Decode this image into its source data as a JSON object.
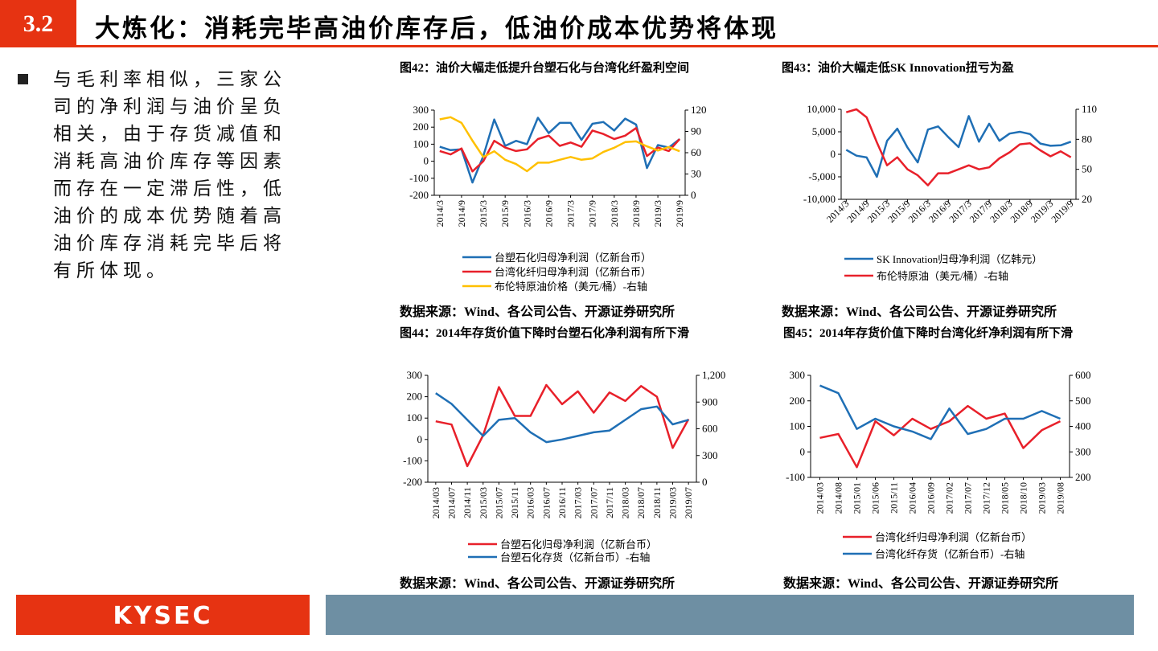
{
  "header": {
    "number": "3.2",
    "title": "大炼化：消耗完毕高油价库存后，低油价成本优势将体现"
  },
  "body": {
    "text": "与毛利率相似，三家公司的净利润与油价呈负相关，由于存货减值和消耗高油价库存等因素而存在一定滞后性，低油价的成本优势随着高油价库存消耗完毕后将有所体现。"
  },
  "footer": {
    "logo": "KYSEC"
  },
  "chart_data": [
    {
      "type": "line",
      "title": "图42：油价大幅走低提升台塑石化与台湾化纤盈利空间",
      "source": "数据来源：Wind、各公司公告、开源证券研究所",
      "categories": [
        "2014/3",
        null,
        "2014/9",
        null,
        "2015/3",
        null,
        "2015/9",
        null,
        "2016/3",
        null,
        "2016/9",
        null,
        "2017/3",
        null,
        "2017/9",
        null,
        "2018/3",
        null,
        "2018/9",
        null,
        "2019/3",
        null,
        "2019/9"
      ],
      "series": [
        {
          "name": "台塑石化归母净利润（亿新台币）",
          "color": "#1f6fb5",
          "values": [
            85,
            65,
            70,
            -125,
            30,
            245,
            90,
            120,
            100,
            255,
            165,
            225,
            225,
            125,
            220,
            230,
            180,
            250,
            215,
            -40,
            95,
            80,
            130
          ]
        },
        {
          "name": "台湾化纤归母净利润（亿新台币）",
          "color": "#e8202a",
          "values": [
            60,
            40,
            75,
            -60,
            0,
            120,
            80,
            60,
            70,
            130,
            150,
            90,
            110,
            85,
            180,
            160,
            130,
            150,
            195,
            30,
            80,
            60,
            130
          ]
        },
        {
          "name": "布伦特原油价格（美元/桶）-右轴",
          "color": "#ffc000",
          "axis": "y2",
          "values": [
            107,
            110,
            102,
            77,
            54,
            62,
            50,
            44,
            34,
            46,
            46,
            50,
            54,
            50,
            52,
            61,
            67,
            75,
            76,
            69,
            63,
            68,
            62
          ]
        }
      ],
      "ylim": [
        -200,
        300
      ],
      "yticks": [
        -200,
        -100,
        0,
        100,
        200,
        300
      ],
      "y2lim": [
        0,
        120
      ],
      "y2ticks": [
        0,
        30,
        60,
        90,
        120
      ],
      "legend": "bottom"
    },
    {
      "type": "line",
      "title": "图43：油价大幅走低SK Innovation扭亏为盈",
      "source": "数据来源：Wind、各公司公告、开源证券研究所",
      "categories": [
        "2014/3",
        null,
        "2014/9",
        null,
        "2015/3",
        null,
        "2015/9",
        null,
        "2016/3",
        null,
        "2016/9",
        null,
        "2017/3",
        null,
        "2017/9",
        null,
        "2018/3",
        null,
        "2018/9",
        null,
        "2019/3",
        null,
        "2019/9"
      ],
      "series": [
        {
          "name": "SK Innovation归母净利润（亿韩元）",
          "color": "#1f6fb5",
          "values": [
            1000,
            -300,
            -700,
            -5000,
            3000,
            5700,
            1500,
            -1800,
            5500,
            6200,
            3800,
            1600,
            8500,
            2800,
            6800,
            3000,
            4600,
            5000,
            4500,
            2400,
            1900,
            2000,
            2800
          ]
        },
        {
          "name": "布伦特原油（美元/桶）-右轴",
          "color": "#e8202a",
          "axis": "y2",
          "values": [
            107,
            110,
            102,
            77,
            54,
            62,
            50,
            44,
            34,
            46,
            46,
            50,
            54,
            50,
            52,
            61,
            67,
            75,
            76,
            69,
            63,
            68,
            62
          ]
        }
      ],
      "ylim": [
        -10000,
        10000
      ],
      "yticks": [
        {
          "value": -10000,
          "label": "-10,000"
        },
        {
          "value": -5000,
          "label": "-5,000"
        },
        0,
        {
          "value": 5000,
          "label": "5,000"
        },
        {
          "value": 10000,
          "label": "10,000"
        }
      ],
      "y2lim": [
        20,
        110
      ],
      "y2ticks": [
        20,
        50,
        80,
        110
      ],
      "legend": "bottom"
    },
    {
      "type": "line",
      "title": "图44：2014年存货价值下降时台塑石化净利润有所下滑",
      "source": "数据来源：Wind、各公司公告、开源证券研究所",
      "categories": [
        "2014/03",
        "2014/07",
        "2014/11",
        "2015/03",
        "2015/07",
        "2015/11",
        "2016/03",
        "2016/07",
        "2016/11",
        "2017/03",
        "2017/07",
        "2017/11",
        "2018/03",
        "2018/07",
        "2018/11",
        "2019/03",
        "2019/07"
      ],
      "series": [
        {
          "name": "台塑石化归母净利润（亿新台币）",
          "color": "#e8202a",
          "values": [
            85,
            70,
            -125,
            20,
            245,
            110,
            110,
            255,
            165,
            225,
            125,
            220,
            180,
            250,
            200,
            -40,
            95
          ]
        },
        {
          "name": "台塑石化存货（亿新台币）-右轴",
          "color": "#1f6fb5",
          "axis": "y2",
          "values": [
            1000,
            880,
            700,
            520,
            700,
            720,
            560,
            450,
            480,
            520,
            560,
            580,
            700,
            820,
            850,
            650,
            700
          ]
        }
      ],
      "ylim": [
        -200,
        300
      ],
      "yticks": [
        -200,
        -100,
        0,
        100,
        200,
        300
      ],
      "y2lim": [
        0,
        1200
      ],
      "y2ticks": [
        0,
        300,
        600,
        900,
        {
          "value": 1200,
          "label": "1,200"
        }
      ],
      "legend": "bottom"
    },
    {
      "type": "line",
      "title": "图45：2014年存货价值下降时台湾化纤净利润有所下滑",
      "source": "数据来源：Wind、各公司公告、开源证券研究所",
      "categories": [
        "2014/03",
        "2014/08",
        "2015/01",
        "2015/06",
        "2015/11",
        "2016/04",
        "2016/09",
        "2017/02",
        "2017/07",
        "2017/12",
        "2018/05",
        "2018/10",
        "2019/03",
        "2019/08"
      ],
      "series": [
        {
          "name": "台湾化纤归母净利润（亿新台币）",
          "color": "#e8202a",
          "values": [
            55,
            70,
            -60,
            120,
            65,
            130,
            90,
            120,
            180,
            130,
            150,
            15,
            85,
            120
          ]
        },
        {
          "name": "台湾化纤存货（亿新台币）-右轴",
          "color": "#1f6fb5",
          "axis": "y2",
          "values": [
            560,
            530,
            390,
            430,
            400,
            380,
            350,
            470,
            370,
            390,
            430,
            430,
            460,
            430
          ]
        }
      ],
      "ylim": [
        -100,
        300
      ],
      "yticks": [
        -100,
        0,
        100,
        200,
        300
      ],
      "y2lim": [
        200,
        600
      ],
      "y2ticks": [
        200,
        300,
        400,
        500,
        600
      ],
      "legend": "bottom"
    }
  ]
}
